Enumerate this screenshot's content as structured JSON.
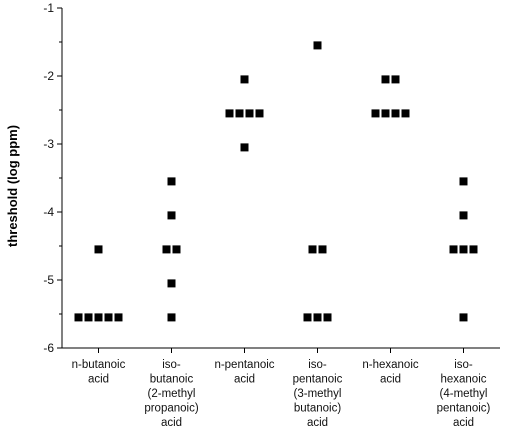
{
  "chart_data": {
    "type": "scatter",
    "title": "",
    "ylabel": "threshold (log ppm)",
    "xlabel": "",
    "ylim": [
      -6,
      -1
    ],
    "yticks": [
      "-1",
      "-2",
      "-3",
      "-4",
      "-5",
      "-6"
    ],
    "grid": false,
    "marker": "square",
    "marker_color": "#000000",
    "categories": [
      [
        "n-butanoic",
        "acid"
      ],
      [
        "iso-",
        "butanoic",
        "(2-methyl",
        "propanoic)",
        "acid"
      ],
      [
        "n-pentanoic",
        "acid"
      ],
      [
        "iso-",
        "pentanoic",
        "(3-methyl",
        "butanoic)",
        "acid"
      ],
      [
        "n-hexanoic",
        "acid"
      ],
      [
        "iso-",
        "hexanoic",
        "(4-methyl",
        "pentanoic)",
        "acid"
      ]
    ],
    "series": [
      {
        "values": [
          -5.55,
          -5.55,
          -5.55,
          -5.55,
          -5.55,
          -4.55
        ]
      },
      {
        "values": [
          -5.55,
          -5.05,
          -4.55,
          -4.55,
          -4.05,
          -3.55
        ]
      },
      {
        "values": [
          -3.05,
          -2.55,
          -2.55,
          -2.55,
          -2.55,
          -2.05
        ]
      },
      {
        "values": [
          -5.55,
          -5.55,
          -5.55,
          -4.55,
          -4.55,
          -1.55
        ]
      },
      {
        "values": [
          -2.55,
          -2.55,
          -2.55,
          -2.55,
          -2.05,
          -2.05
        ]
      },
      {
        "values": [
          -5.55,
          -4.55,
          -4.55,
          -4.55,
          -4.05,
          -3.55
        ]
      }
    ]
  }
}
